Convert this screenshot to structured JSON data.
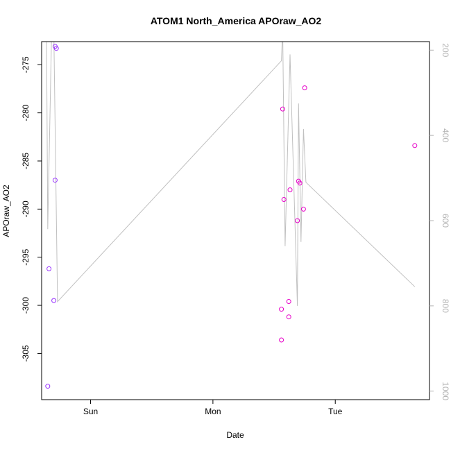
{
  "chart_data": {
    "type": "scatter",
    "title": "ATOM1 North_America APOraw_AO2",
    "xlabel": "Date",
    "ylabel": "APOraw_AO2",
    "x_ticks": [
      {
        "label": "Sun",
        "value": 1.0
      },
      {
        "label": "Mon",
        "value": 2.0
      },
      {
        "label": "Tue",
        "value": 3.0
      }
    ],
    "xlim": [
      0.6,
      3.77
    ],
    "ylim": [
      -309.8,
      -272.6
    ],
    "y_ticks": [
      -305,
      -300,
      -295,
      -290,
      -285,
      -280,
      -275
    ],
    "y2_ticks": [
      200,
      400,
      600,
      800,
      1000
    ],
    "y2lim": [
      180,
      1020
    ],
    "point_colors": {
      "left": "#9933ff",
      "right": "#e600c8"
    },
    "line_color": "#c0c0c0",
    "points": [
      {
        "x": 0.65,
        "y": -308.4
      },
      {
        "x": 0.66,
        "y": -296.2
      },
      {
        "x": 0.7,
        "y": -299.5
      },
      {
        "x": 0.71,
        "y": -287.0
      },
      {
        "x": 0.71,
        "y": -273.1
      },
      {
        "x": 0.72,
        "y": -273.3
      },
      {
        "x": 2.56,
        "y": -300.4
      },
      {
        "x": 2.56,
        "y": -303.6
      },
      {
        "x": 2.57,
        "y": -279.6
      },
      {
        "x": 2.58,
        "y": -289.0
      },
      {
        "x": 2.62,
        "y": -299.6
      },
      {
        "x": 2.62,
        "y": -301.2
      },
      {
        "x": 2.63,
        "y": -288.0
      },
      {
        "x": 2.69,
        "y": -291.2
      },
      {
        "x": 2.7,
        "y": -287.1
      },
      {
        "x": 2.71,
        "y": -287.3
      },
      {
        "x": 2.74,
        "y": -290.0
      },
      {
        "x": 2.75,
        "y": -277.4
      },
      {
        "x": 3.65,
        "y": -283.4
      }
    ],
    "line_series": [
      {
        "x": 0.64,
        "y2": 175
      },
      {
        "x": 0.65,
        "y2": 620
      },
      {
        "x": 0.68,
        "y2": 180
      },
      {
        "x": 0.7,
        "y2": 160
      },
      {
        "x": 0.73,
        "y2": 790
      },
      {
        "x": 2.56,
        "y2": 225
      },
      {
        "x": 2.57,
        "y2": 150
      },
      {
        "x": 2.59,
        "y2": 660
      },
      {
        "x": 2.63,
        "y2": 210
      },
      {
        "x": 2.69,
        "y2": 800
      },
      {
        "x": 2.7,
        "y2": 325
      },
      {
        "x": 2.72,
        "y2": 650
      },
      {
        "x": 2.74,
        "y2": 385
      },
      {
        "x": 2.76,
        "y2": 510
      },
      {
        "x": 3.65,
        "y2": 755
      }
    ]
  }
}
